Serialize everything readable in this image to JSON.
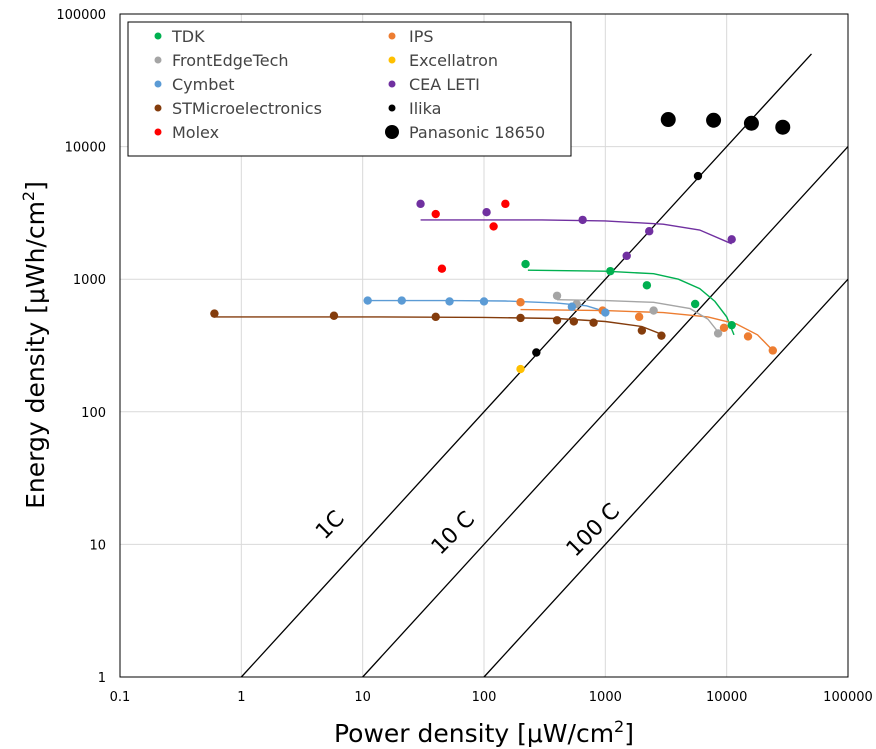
{
  "chart_data": {
    "type": "scatter",
    "x_scale": "log",
    "y_scale": "log",
    "xlim": [
      0.1,
      100000
    ],
    "ylim": [
      1,
      100000
    ],
    "xlabel": "Power density [μW/cm",
    "xlabel_sup": "2",
    "xlabel_end": "]",
    "ylabel": "Energy density [μWh/cm",
    "ylabel_sup": "2",
    "ylabel_end": "]",
    "x_ticks": [
      0.1,
      1,
      10,
      100,
      1000,
      10000,
      100000
    ],
    "x_tick_labels": [
      "0.1",
      "1",
      "10",
      "100",
      "1000",
      "10000",
      "100000"
    ],
    "y_ticks": [
      1,
      10,
      100,
      1000,
      10000,
      100000
    ],
    "y_tick_labels": [
      "1",
      "10",
      "100",
      "1000",
      "10000",
      "100000"
    ],
    "grid": true,
    "legend_position": "top-left",
    "series": [
      {
        "name": "TDK",
        "color": "#00b050",
        "marker": "small",
        "points": [
          [
            220,
            1300
          ],
          [
            1100,
            1150
          ],
          [
            2200,
            900
          ],
          [
            5500,
            650
          ],
          [
            11000,
            450
          ]
        ],
        "fit": [
          [
            230,
            1170
          ],
          [
            1000,
            1150
          ],
          [
            2500,
            1100
          ],
          [
            4000,
            1000
          ],
          [
            6000,
            850
          ],
          [
            8000,
            680
          ],
          [
            10000,
            520
          ],
          [
            11500,
            380
          ]
        ]
      },
      {
        "name": "IPS",
        "color": "#ed7d31",
        "marker": "small",
        "points": [
          [
            200,
            670
          ],
          [
            950,
            580
          ],
          [
            1900,
            520
          ],
          [
            9500,
            430
          ],
          [
            15000,
            370
          ],
          [
            24000,
            290
          ]
        ],
        "fit": [
          [
            200,
            590
          ],
          [
            1000,
            580
          ],
          [
            3000,
            560
          ],
          [
            7000,
            520
          ],
          [
            12000,
            460
          ],
          [
            18000,
            380
          ],
          [
            24000,
            290
          ]
        ]
      },
      {
        "name": "FrontEdgeTech",
        "color": "#a5a5a5",
        "marker": "small",
        "points": [
          [
            400,
            750
          ],
          [
            580,
            650
          ],
          [
            2500,
            580
          ],
          [
            8500,
            390
          ]
        ],
        "fit": [
          [
            400,
            700
          ],
          [
            1000,
            690
          ],
          [
            2500,
            670
          ],
          [
            5000,
            600
          ],
          [
            7000,
            500
          ],
          [
            8500,
            400
          ]
        ]
      },
      {
        "name": "Excellatron",
        "color": "#ffc000",
        "marker": "small",
        "points": [
          [
            200,
            210
          ]
        ],
        "fit": []
      },
      {
        "name": "Cymbet",
        "color": "#5b9bd5",
        "marker": "small",
        "points": [
          [
            11,
            690
          ],
          [
            21,
            690
          ],
          [
            52,
            680
          ],
          [
            100,
            680
          ],
          [
            530,
            620
          ],
          [
            1000,
            560
          ]
        ],
        "fit": [
          [
            11,
            690
          ],
          [
            50,
            690
          ],
          [
            150,
            685
          ],
          [
            400,
            660
          ],
          [
            700,
            630
          ],
          [
            1000,
            570
          ]
        ]
      },
      {
        "name": "CEA LETI",
        "color": "#7030a0",
        "marker": "small",
        "points": [
          [
            30,
            3700
          ],
          [
            105,
            3200
          ],
          [
            650,
            2800
          ],
          [
            1500,
            1500
          ],
          [
            2300,
            2300
          ],
          [
            11000,
            2000
          ]
        ],
        "fit": [
          [
            30,
            2800
          ],
          [
            300,
            2800
          ],
          [
            1000,
            2750
          ],
          [
            3000,
            2600
          ],
          [
            6000,
            2350
          ],
          [
            11000,
            1850
          ]
        ]
      },
      {
        "name": "STMicroelectronics",
        "color": "#843c0c",
        "marker": "small",
        "points": [
          [
            0.6,
            550
          ],
          [
            5.8,
            530
          ],
          [
            40,
            520
          ],
          [
            200,
            510
          ],
          [
            400,
            490
          ],
          [
            550,
            480
          ],
          [
            800,
            470
          ],
          [
            2000,
            410
          ],
          [
            2900,
            375
          ]
        ],
        "fit": [
          [
            0.6,
            520
          ],
          [
            10,
            520
          ],
          [
            100,
            515
          ],
          [
            400,
            505
          ],
          [
            1000,
            480
          ],
          [
            2000,
            440
          ],
          [
            2900,
            385
          ]
        ]
      },
      {
        "name": "Ilika",
        "color": "#000000",
        "marker": "small",
        "points": [
          [
            270,
            280
          ],
          [
            5800,
            6000
          ]
        ],
        "fit": []
      },
      {
        "name": "Molex",
        "color": "#ff0000",
        "marker": "small",
        "points": [
          [
            40,
            3100
          ],
          [
            45,
            1200
          ],
          [
            120,
            2500
          ],
          [
            150,
            3700
          ]
        ],
        "fit": []
      },
      {
        "name": "Panasonic 18650",
        "color": "#000000",
        "marker": "large",
        "points": [
          [
            3300,
            16000
          ],
          [
            7800,
            15800
          ],
          [
            16000,
            15000
          ],
          [
            29000,
            14000
          ]
        ],
        "fit": []
      }
    ],
    "c_rate_lines": [
      {
        "label": "1C",
        "from": [
          1,
          1
        ],
        "to": [
          50000,
          50000
        ]
      },
      {
        "label": "10 C",
        "from": [
          10,
          1
        ],
        "to": [
          100000,
          10000
        ]
      },
      {
        "label": "100 C",
        "from": [
          100,
          1
        ],
        "to": [
          100000,
          1000
        ]
      }
    ]
  }
}
